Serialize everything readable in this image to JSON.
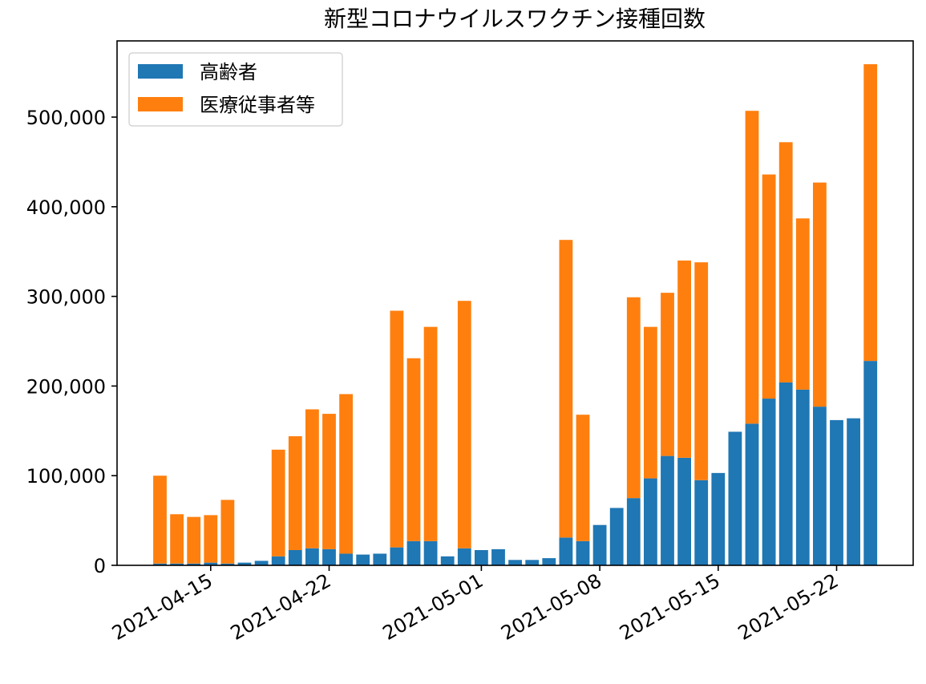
{
  "chart_data": {
    "type": "bar",
    "stacked": true,
    "title": "新型コロナウイルスワクチン接種回数",
    "xlabel": "",
    "ylabel": "",
    "x_start": "2021-04-12",
    "x": [
      "2021-04-12",
      "2021-04-13",
      "2021-04-14",
      "2021-04-15",
      "2021-04-16",
      "2021-04-17",
      "2021-04-18",
      "2021-04-19",
      "2021-04-20",
      "2021-04-21",
      "2021-04-22",
      "2021-04-23",
      "2021-04-24",
      "2021-04-25",
      "2021-04-26",
      "2021-04-27",
      "2021-04-28",
      "2021-04-29",
      "2021-04-30",
      "2021-05-01",
      "2021-05-02",
      "2021-05-03",
      "2021-05-04",
      "2021-05-05",
      "2021-05-06",
      "2021-05-07",
      "2021-05-08",
      "2021-05-09",
      "2021-05-10",
      "2021-05-11",
      "2021-05-12",
      "2021-05-13",
      "2021-05-14",
      "2021-05-15",
      "2021-05-16",
      "2021-05-17",
      "2021-05-18",
      "2021-05-19",
      "2021-05-20",
      "2021-05-21",
      "2021-05-22",
      "2021-05-23",
      "2021-05-24"
    ],
    "series": [
      {
        "name": "高齢者",
        "color": "#1f77b4",
        "values": [
          2000,
          2000,
          2000,
          3000,
          2000,
          3000,
          5000,
          10000,
          17000,
          19000,
          18000,
          13000,
          12000,
          13000,
          20000,
          27000,
          27000,
          10000,
          19000,
          17000,
          18000,
          6000,
          6000,
          8000,
          31000,
          27000,
          45000,
          64000,
          75000,
          97000,
          122000,
          120000,
          95000,
          103000,
          149000,
          158000,
          186000,
          204000,
          196000,
          177000,
          162000,
          164000,
          228000
        ]
      },
      {
        "name": "医療従事者等",
        "color": "#ff7f0e",
        "values": [
          98000,
          55000,
          52000,
          53000,
          71000,
          0,
          0,
          119000,
          127000,
          155000,
          151000,
          178000,
          0,
          0,
          264000,
          204000,
          239000,
          0,
          276000,
          0,
          0,
          0,
          0,
          0,
          332000,
          141000,
          0,
          0,
          224000,
          169000,
          182000,
          220000,
          243000,
          0,
          0,
          349000,
          250000,
          268000,
          191000,
          250000,
          0,
          0,
          331000
        ]
      }
    ],
    "y_ticks": [
      0,
      100000,
      200000,
      300000,
      400000,
      500000
    ],
    "y_tick_labels": [
      "0",
      "100,000",
      "200,000",
      "300,000",
      "400,000",
      "500,000"
    ],
    "x_ticks": [
      "2021-04-15",
      "2021-04-22",
      "2021-05-01",
      "2021-05-08",
      "2021-05-15",
      "2021-05-22"
    ],
    "ylim": [
      0,
      585000
    ],
    "grid": false,
    "legend_position": "upper-left"
  }
}
